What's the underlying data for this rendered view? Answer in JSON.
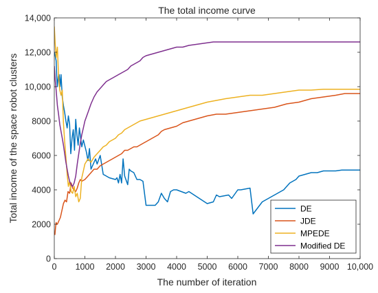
{
  "chart_data": {
    "type": "line",
    "title": "The total income curve",
    "xlabel": "The number of iteration",
    "ylabel": "Total income of the space robot clusters",
    "xlim": [
      0,
      10000
    ],
    "ylim": [
      0,
      14000
    ],
    "x_ticks": [
      0,
      1000,
      2000,
      3000,
      4000,
      5000,
      6000,
      7000,
      8000,
      9000,
      10000
    ],
    "x_tick_labels": [
      "0",
      "1000",
      "2000",
      "3000",
      "4000",
      "5000",
      "6000",
      "7000",
      "8000",
      "9000",
      "10,000"
    ],
    "y_ticks": [
      0,
      2000,
      4000,
      6000,
      8000,
      10000,
      12000,
      14000
    ],
    "y_tick_labels": [
      "0",
      "2000",
      "4000",
      "6000",
      "8000",
      "10,000",
      "12,000",
      "14,000"
    ],
    "grid": false,
    "legend_position": "bottom-right",
    "series": [
      {
        "name": "DE",
        "color": "#0072BD",
        "x": [
          0,
          30,
          60,
          80,
          100,
          130,
          160,
          190,
          220,
          260,
          300,
          340,
          380,
          420,
          460,
          500,
          540,
          580,
          620,
          660,
          700,
          740,
          780,
          820,
          900,
          950,
          1050,
          1100,
          1150,
          1200,
          1300,
          1350,
          1400,
          1500,
          1600,
          1700,
          1800,
          2000,
          2050,
          2100,
          2150,
          2200,
          2250,
          2300,
          2400,
          2450,
          2500,
          2600,
          2700,
          2800,
          2900,
          3000,
          3300,
          3400,
          3500,
          3600,
          3700,
          3800,
          3900,
          4000,
          4300,
          4400,
          5000,
          5200,
          5300,
          5400,
          5700,
          5800,
          6000,
          6100,
          6400,
          6500,
          6800,
          6900,
          7000,
          7100,
          7200,
          7400,
          7500,
          7600,
          7700,
          7800,
          7900,
          8000,
          8200,
          8400,
          8600,
          8800,
          9000,
          9200,
          9400,
          9600,
          9800,
          10000
        ],
        "y": [
          12000,
          11800,
          11500,
          10500,
          10000,
          10600,
          10700,
          10000,
          10700,
          9400,
          8900,
          8500,
          8000,
          7600,
          8300,
          7800,
          6100,
          7000,
          7500,
          6300,
          8100,
          7200,
          6600,
          7600,
          6500,
          6900,
          6200,
          5700,
          6400,
          5200,
          5600,
          5800,
          5500,
          6000,
          4900,
          4800,
          4700,
          4600,
          4700,
          4400,
          4900,
          4400,
          5800,
          4800,
          4300,
          5200,
          5100,
          5000,
          4600,
          4600,
          4500,
          3100,
          3100,
          3300,
          3800,
          3500,
          3300,
          3900,
          4000,
          4000,
          3800,
          3900,
          3200,
          3300,
          3700,
          3600,
          3700,
          3500,
          4000,
          4000,
          4100,
          2600,
          3300,
          3400,
          3500,
          3600,
          3700,
          3900,
          4000,
          4200,
          4400,
          4500,
          4600,
          4800,
          4900,
          5000,
          5000,
          5100,
          5100,
          5100,
          5150,
          5150,
          5150,
          5150
        ]
      },
      {
        "name": "JDE",
        "color": "#D95319",
        "x": [
          0,
          20,
          40,
          60,
          80,
          100,
          150,
          200,
          250,
          300,
          350,
          400,
          450,
          500,
          550,
          600,
          700,
          750,
          800,
          850,
          900,
          1000,
          1100,
          1200,
          1300,
          1400,
          1500,
          1600,
          1700,
          1800,
          1900,
          2000,
          2100,
          2200,
          2300,
          2400,
          2500,
          2600,
          2700,
          2800,
          2900,
          3000,
          3200,
          3400,
          3500,
          3600,
          3800,
          4000,
          4200,
          4400,
          4600,
          4800,
          5000,
          5300,
          5600,
          6000,
          6400,
          6800,
          7200,
          7600,
          8000,
          8400,
          8800,
          9200,
          9500,
          10000
        ],
        "y": [
          1500,
          1400,
          1800,
          2100,
          2000,
          2000,
          2200,
          2400,
          2800,
          3200,
          3400,
          3300,
          3900,
          3800,
          4400,
          4100,
          3900,
          4100,
          4400,
          4600,
          4500,
          4600,
          4800,
          5000,
          5200,
          5200,
          5400,
          5500,
          5600,
          5700,
          5800,
          5900,
          6000,
          6100,
          6300,
          6300,
          6400,
          6500,
          6500,
          6600,
          6700,
          6800,
          7000,
          7200,
          7400,
          7500,
          7600,
          7700,
          7900,
          8000,
          8100,
          8200,
          8300,
          8400,
          8400,
          8500,
          8600,
          8700,
          8800,
          9000,
          9100,
          9300,
          9400,
          9500,
          9600,
          9600
        ]
      },
      {
        "name": "MPEDE",
        "color": "#EDB120",
        "x": [
          0,
          30,
          60,
          100,
          140,
          180,
          220,
          260,
          300,
          340,
          380,
          420,
          460,
          500,
          550,
          600,
          650,
          700,
          750,
          800,
          850,
          900,
          950,
          1000,
          1100,
          1200,
          1300,
          1400,
          1500,
          1600,
          1700,
          1800,
          1900,
          2000,
          2100,
          2200,
          2300,
          2400,
          2600,
          2800,
          3000,
          3200,
          3400,
          3600,
          3800,
          4000,
          4200,
          4400,
          4600,
          4800,
          5000,
          5300,
          5600,
          6000,
          6400,
          6800,
          7200,
          7600,
          8000,
          8400,
          8800,
          9200,
          9600,
          10000
        ],
        "y": [
          13500,
          12500,
          11700,
          12300,
          10600,
          9800,
          9500,
          9800,
          7900,
          6800,
          5900,
          4900,
          4200,
          4500,
          3900,
          3800,
          4200,
          3600,
          3800,
          3300,
          3500,
          4700,
          5100,
          5500,
          5800,
          5600,
          5900,
          6100,
          6300,
          6500,
          6600,
          6800,
          6900,
          7000,
          7200,
          7300,
          7500,
          7600,
          7800,
          8000,
          8100,
          8200,
          8300,
          8400,
          8500,
          8600,
          8700,
          8800,
          8900,
          9000,
          9100,
          9200,
          9300,
          9400,
          9500,
          9500,
          9600,
          9700,
          9800,
          9800,
          9850,
          9850,
          9850,
          9850
        ]
      },
      {
        "name": "Modified DE",
        "color": "#7E2F8E",
        "x": [
          0,
          30,
          60,
          100,
          140,
          180,
          220,
          260,
          300,
          340,
          380,
          420,
          460,
          500,
          550,
          600,
          650,
          700,
          750,
          800,
          850,
          900,
          950,
          1000,
          1100,
          1200,
          1300,
          1400,
          1500,
          1600,
          1700,
          1800,
          1900,
          2000,
          2100,
          2200,
          2300,
          2400,
          2500,
          2600,
          2700,
          2800,
          2900,
          3000,
          3200,
          3400,
          3600,
          3800,
          4000,
          4200,
          4400,
          4600,
          4800,
          5000,
          5200,
          5500,
          6000,
          6500,
          7000,
          7500,
          8000,
          8500,
          9000,
          9500,
          10000
        ],
        "y": [
          11200,
          10400,
          9800,
          8900,
          8400,
          7800,
          7400,
          7000,
          6600,
          6100,
          5600,
          5200,
          4800,
          4500,
          4300,
          4200,
          4400,
          4800,
          5500,
          6100,
          6700,
          7200,
          7600,
          8000,
          8500,
          9000,
          9400,
          9700,
          9900,
          10100,
          10300,
          10400,
          10500,
          10600,
          10700,
          10800,
          10900,
          11000,
          11200,
          11300,
          11400,
          11500,
          11700,
          11800,
          11900,
          12000,
          12100,
          12200,
          12300,
          12300,
          12400,
          12450,
          12500,
          12550,
          12600,
          12600,
          12600,
          12600,
          12600,
          12600,
          12600,
          12600,
          12600,
          12600,
          12600
        ]
      }
    ]
  }
}
